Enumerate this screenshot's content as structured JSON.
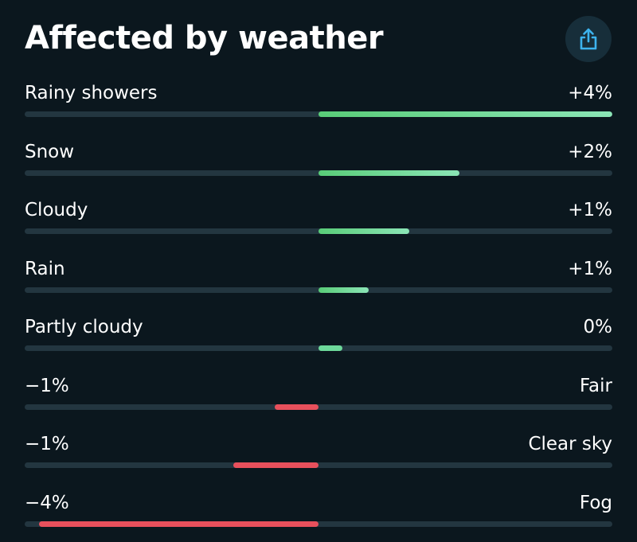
{
  "header": {
    "title": "Affected by weather",
    "share_icon": "share-icon"
  },
  "colors": {
    "background": "#0b171e",
    "positive": "#6dd89a",
    "negative": "#e8505c",
    "track": "#233640",
    "share_accent": "#3db3ee"
  },
  "rows": [
    {
      "label": "Rainy showers",
      "value_text": "+4%",
      "value": 4,
      "fill_fraction": 1.0
    },
    {
      "label": "Snow",
      "value_text": "+2%",
      "value": 2,
      "fill_fraction": 0.48
    },
    {
      "label": "Cloudy",
      "value_text": "+1%",
      "value": 1,
      "fill_fraction": 0.31
    },
    {
      "label": "Rain",
      "value_text": "+1%",
      "value": 1,
      "fill_fraction": 0.17
    },
    {
      "label": "Partly cloudy",
      "value_text": "0%",
      "value": 0,
      "fill_fraction": 0.08
    },
    {
      "label": "Fair",
      "value_text": "−1%",
      "value": -1,
      "fill_fraction": 0.15
    },
    {
      "label": "Clear sky",
      "value_text": "−1%",
      "value": -1,
      "fill_fraction": 0.29
    },
    {
      "label": "Fog",
      "value_text": "−4%",
      "value": -4,
      "fill_fraction": 0.95
    }
  ]
}
